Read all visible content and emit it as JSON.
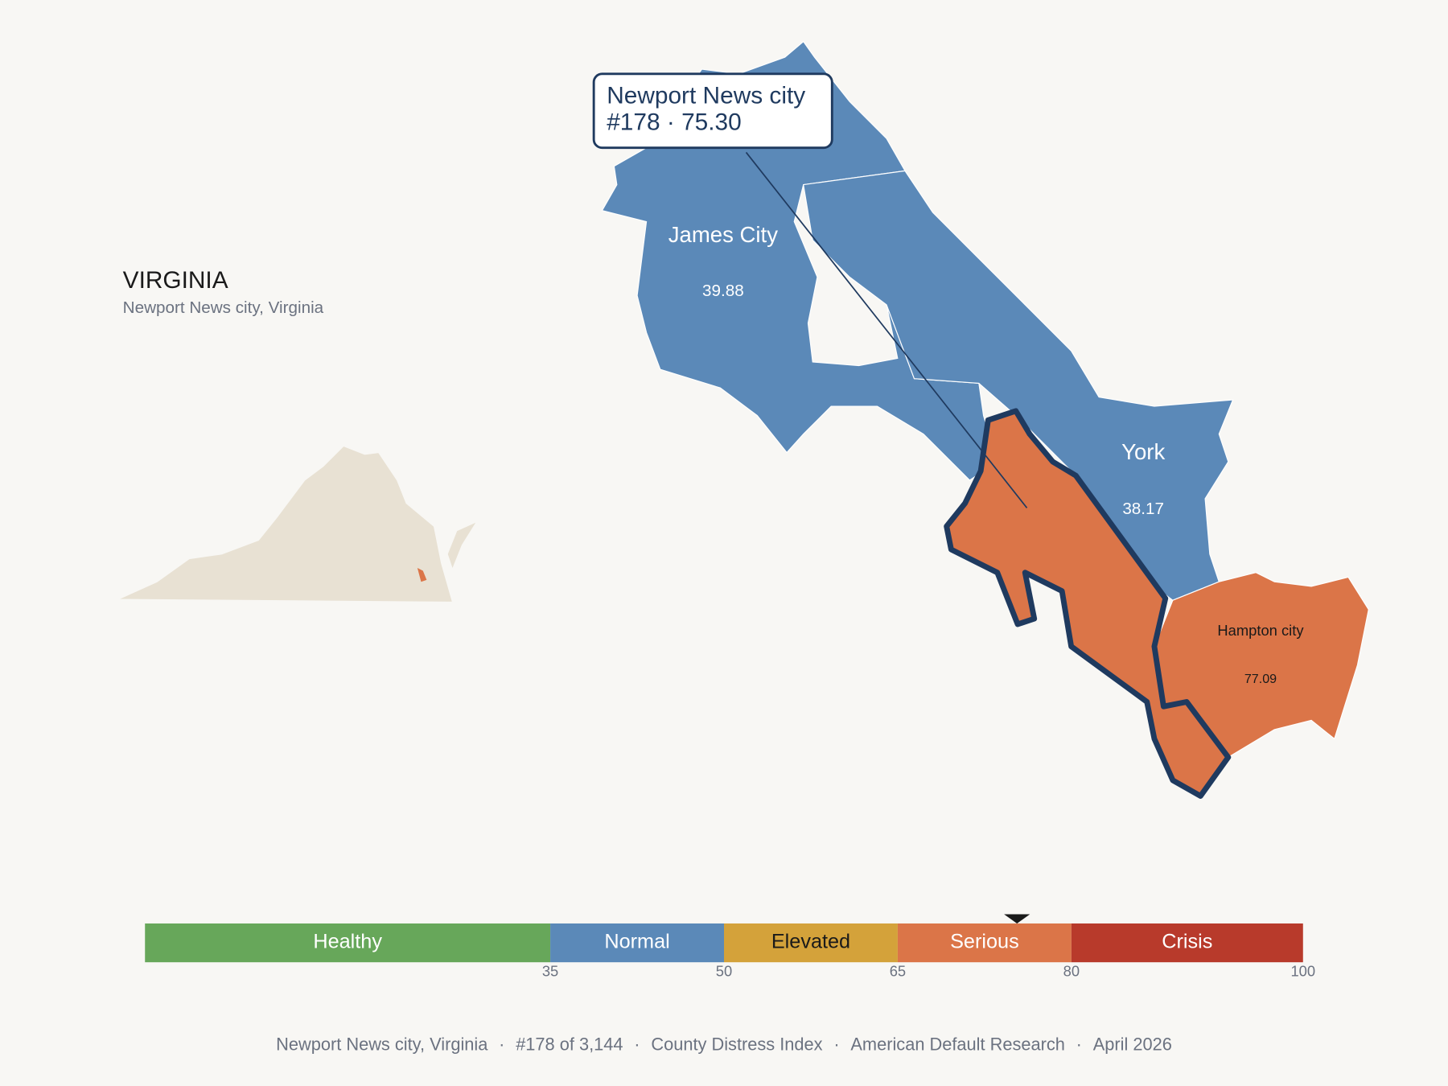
{
  "header": {
    "title": "VIRGINIA",
    "subtitle": "Newport News city, Virginia"
  },
  "callout": {
    "name": "Newport News city",
    "detail": "#178 · 75.30"
  },
  "regions": [
    {
      "name": "James City",
      "value": "39.88",
      "color": "#5b89b8"
    },
    {
      "name": "York",
      "value": "38.17",
      "color": "#5b89b8"
    },
    {
      "name": "Hampton city",
      "value": "77.09",
      "color": "#db7548"
    }
  ],
  "scale": {
    "min": 0,
    "max": 100,
    "ticks": [
      35,
      50,
      65,
      80,
      100
    ],
    "marker": 75.3,
    "bands": [
      {
        "label": "Healthy",
        "color": "#67a75a",
        "text_color": "#ffffff"
      },
      {
        "label": "Normal",
        "color": "#5b89b8",
        "text_color": "#ffffff"
      },
      {
        "label": "Elevated",
        "color": "#d4a23a",
        "text_color": "#1a1a1a"
      },
      {
        "label": "Serious",
        "color": "#db7548",
        "text_color": "#ffffff"
      },
      {
        "label": "Crisis",
        "color": "#b83a2b",
        "text_color": "#ffffff"
      }
    ]
  },
  "footer": {
    "separator": "·",
    "items": [
      "Newport News city, Virginia",
      "#178 of 3,144",
      "County Distress Index",
      "American Default Research",
      "April 2026"
    ]
  }
}
